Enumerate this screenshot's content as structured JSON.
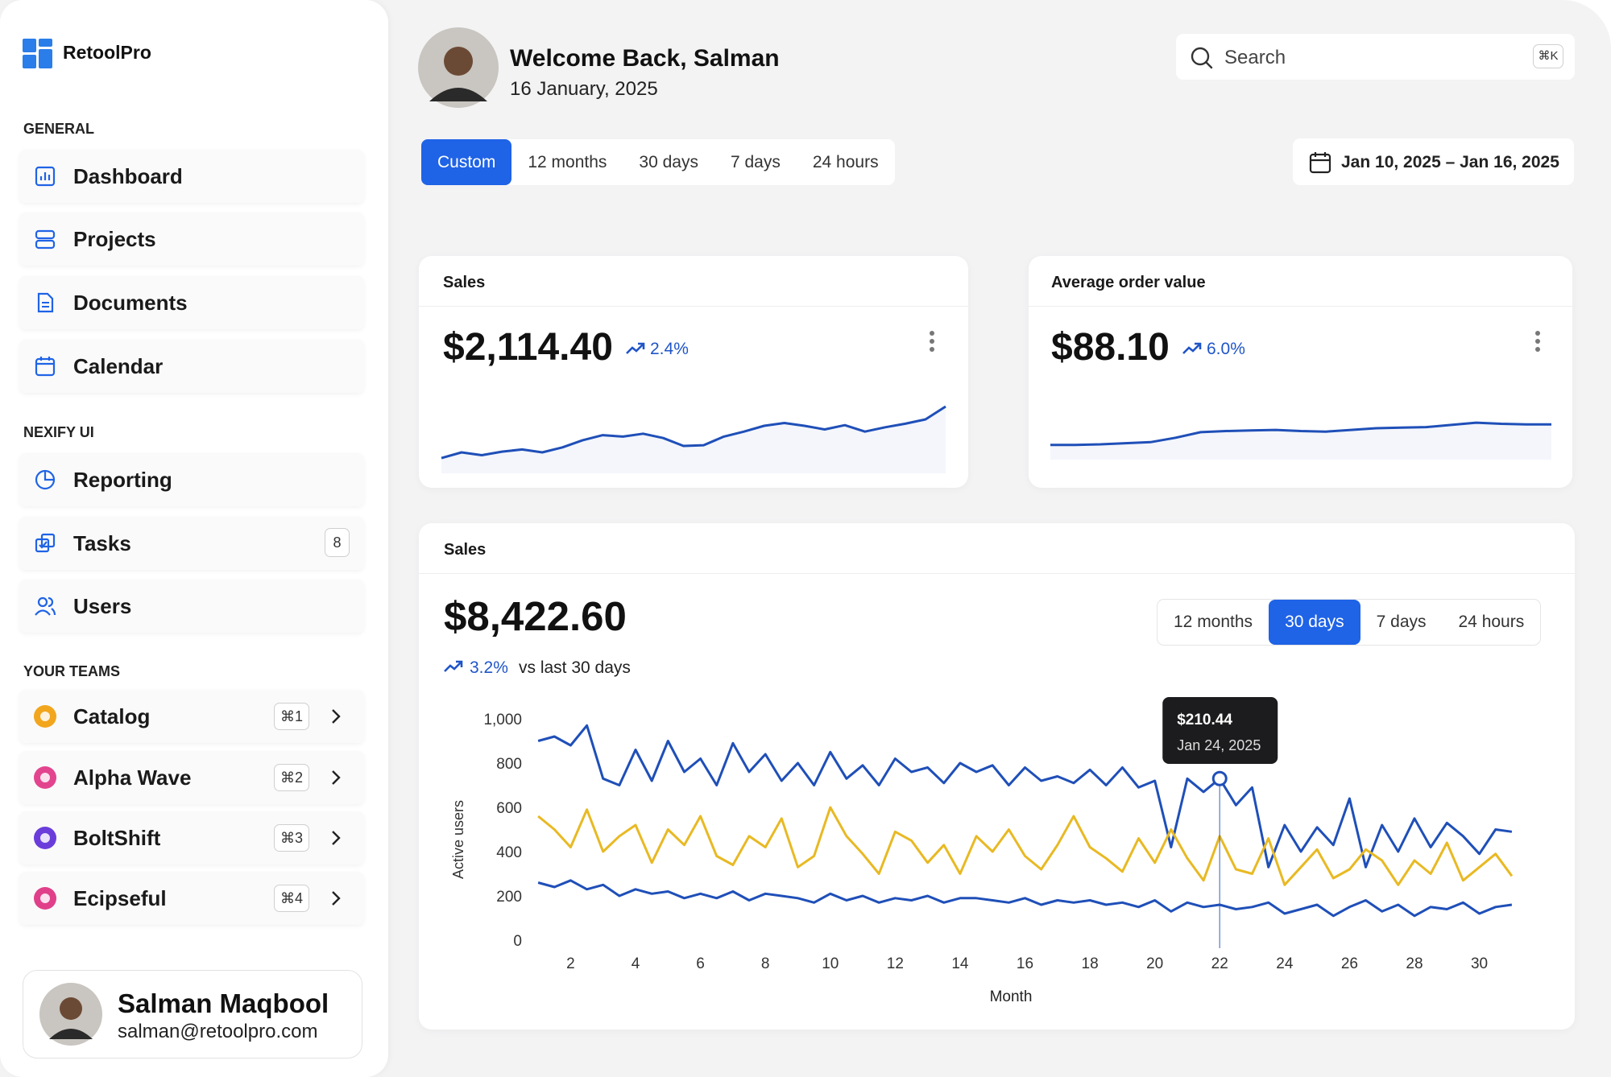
{
  "brand": "RetoolPro",
  "sidebar": [
    {
      "title": "GENERAL",
      "items": [
        {
          "label": "Dashboard"
        },
        {
          "label": "Projects"
        },
        {
          "label": "Documents"
        },
        {
          "label": "Calendar"
        }
      ]
    },
    {
      "title": "NEXIFY UI",
      "items": [
        {
          "label": "Reporting"
        },
        {
          "label": "Tasks",
          "badge": 8
        },
        {
          "label": "Users"
        }
      ]
    },
    {
      "title": "YOUR TEAMS",
      "items": [
        {
          "label": "Catalog",
          "shortcut": "⌘1"
        },
        {
          "label": "Alpha Wave",
          "shortcut": "⌘2"
        },
        {
          "label": "BoltShift",
          "shortcut": "⌘3"
        },
        {
          "label": "Ecipseful",
          "shortcut": "⌘4"
        }
      ]
    }
  ],
  "user": {
    "name": "Salman Maqbool",
    "email": "salman@retoolpro.com"
  },
  "header": {
    "greeting": "Welcome Back, Salman",
    "date": "16 January, 2025",
    "search_placeholder": "Search",
    "search_shortcut": "⌘K"
  },
  "range_tabs": [
    "Custom",
    "12 months",
    "30 days",
    "7 days",
    "24 hours"
  ],
  "range_active": 0,
  "date_range": "Jan 10, 2025 – Jan 16, 2025",
  "cards": [
    {
      "title": "Sales",
      "value": "$2,114.40",
      "change": "2.4%",
      "chart_data": {
        "type": "line",
        "color": "#1f4fb8",
        "ylim": [
          0,
          100
        ],
        "values": [
          10,
          18,
          14,
          19,
          22,
          18,
          25,
          35,
          42,
          40,
          44,
          38,
          27,
          28,
          40,
          47,
          55,
          59,
          55,
          50,
          56,
          47,
          53,
          58,
          64,
          82
        ]
      }
    },
    {
      "title": "Average order value",
      "value": "$88.10",
      "change": "6.0%",
      "chart_data": {
        "type": "line",
        "color": "#1f4fb8",
        "ylim": [
          0,
          100
        ],
        "values": [
          12,
          12,
          13,
          15,
          17,
          25,
          35,
          37,
          38,
          39,
          37,
          36,
          39,
          42,
          43,
          44,
          48,
          52,
          50,
          49,
          49
        ]
      }
    }
  ],
  "main": {
    "title": "Sales",
    "value": "$8,422.60",
    "change": "3.2%",
    "change_note": "vs last 30 days",
    "tabs": [
      "12 months",
      "30 days",
      "7 days",
      "24 hours"
    ],
    "tab_active": 1,
    "tooltip": {
      "index": 42,
      "value": "$210.44",
      "date": "Jan 24, 2025"
    },
    "chart_data": {
      "type": "line",
      "xlabel": "Month",
      "ylabel": "Active users",
      "xlim": [
        0.5,
        31.5
      ],
      "ylim": [
        0,
        1000
      ],
      "xticks": [
        2,
        4,
        6,
        8,
        10,
        12,
        14,
        16,
        18,
        20,
        22,
        24,
        26,
        28,
        30
      ],
      "yticks": [
        0,
        200,
        400,
        600,
        800,
        {
          "value": 1000,
          "label": "1,000"
        }
      ],
      "x": [
        1,
        1.5,
        2,
        2.5,
        3,
        3.5,
        4,
        4.5,
        5,
        5.5,
        6,
        6.5,
        7,
        7.5,
        8,
        8.5,
        9,
        9.5,
        10,
        10.5,
        11,
        11.5,
        12,
        12.5,
        13,
        13.5,
        14,
        14.5,
        15,
        15.5,
        16,
        16.5,
        17,
        17.5,
        18,
        18.5,
        19,
        19.5,
        20,
        20.5,
        21,
        21.5,
        22,
        22.5,
        23,
        23.5,
        24,
        24.5,
        25,
        25.5,
        26,
        26.5,
        27,
        27.5,
        28,
        28.5,
        29,
        29.5,
        30,
        30.5,
        31
      ],
      "series": [
        {
          "color": "#1f4fb8",
          "values": [
            900,
            920,
            880,
            970,
            730,
            700,
            860,
            720,
            900,
            760,
            820,
            700,
            890,
            760,
            840,
            720,
            800,
            700,
            850,
            730,
            790,
            700,
            820,
            760,
            780,
            710,
            800,
            760,
            790,
            700,
            780,
            720,
            740,
            710,
            770,
            700,
            780,
            690,
            720,
            420,
            730,
            670,
            730,
            610,
            690,
            330,
            520,
            400,
            510,
            430,
            640,
            330,
            520,
            400,
            550,
            420,
            530,
            470,
            390,
            500,
            490
          ]
        },
        {
          "color": "#e8b923",
          "values": [
            560,
            500,
            420,
            590,
            400,
            470,
            520,
            350,
            500,
            430,
            560,
            380,
            340,
            470,
            420,
            550,
            330,
            380,
            600,
            470,
            390,
            300,
            490,
            450,
            350,
            430,
            300,
            470,
            400,
            500,
            380,
            320,
            430,
            560,
            420,
            370,
            310,
            460,
            350,
            500,
            370,
            270,
            470,
            320,
            300,
            460,
            250,
            330,
            410,
            280,
            320,
            410,
            360,
            250,
            360,
            300,
            440,
            270,
            330,
            390,
            290
          ]
        },
        {
          "color": "#1f4fb8",
          "values": [
            260,
            240,
            270,
            230,
            250,
            200,
            230,
            210,
            220,
            190,
            210,
            190,
            220,
            180,
            210,
            200,
            190,
            170,
            210,
            180,
            200,
            170,
            190,
            180,
            200,
            170,
            190,
            190,
            180,
            170,
            190,
            160,
            180,
            170,
            180,
            160,
            170,
            150,
            180,
            130,
            170,
            150,
            160,
            140,
            150,
            170,
            120,
            140,
            160,
            110,
            150,
            180,
            130,
            160,
            110,
            150,
            140,
            170,
            120,
            150,
            160
          ]
        }
      ]
    }
  }
}
